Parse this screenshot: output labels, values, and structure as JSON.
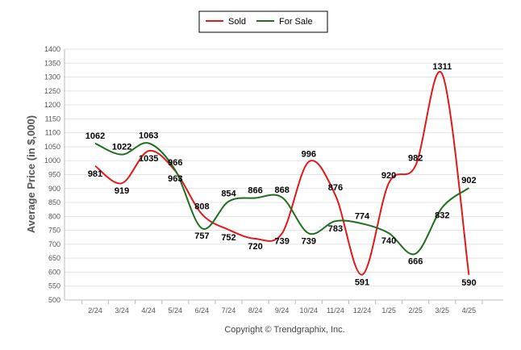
{
  "chart_data": {
    "type": "line",
    "categories": [
      "2/24",
      "3/24",
      "4/24",
      "5/24",
      "6/24",
      "7/24",
      "8/24",
      "9/24",
      "10/24",
      "11/24",
      "12/24",
      "1/25",
      "2/25",
      "3/25",
      "4/25"
    ],
    "series": [
      {
        "name": "Sold",
        "color": "#e0191b",
        "values": [
          981,
          919,
          1035,
          963,
          808,
          752,
          720,
          739,
          996,
          876,
          591,
          920,
          982,
          1311,
          590
        ]
      },
      {
        "name": "For Sale",
        "color": "#1e6e1e",
        "values": [
          1062,
          1022,
          1063,
          966,
          757,
          854,
          866,
          868,
          739,
          783,
          774,
          740,
          666,
          832,
          902
        ]
      }
    ],
    "ylabel": "Average Price (in $,000)",
    "xlabel": "",
    "ylim": [
      500,
      1400
    ],
    "yticks": [
      500,
      550,
      600,
      650,
      700,
      750,
      800,
      850,
      900,
      950,
      1000,
      1050,
      1100,
      1150,
      1200,
      1250,
      1300,
      1350,
      1400
    ],
    "grid": true,
    "legend": "top-center"
  },
  "footer": {
    "credit": "Copyright © Trendgraphix, Inc."
  }
}
